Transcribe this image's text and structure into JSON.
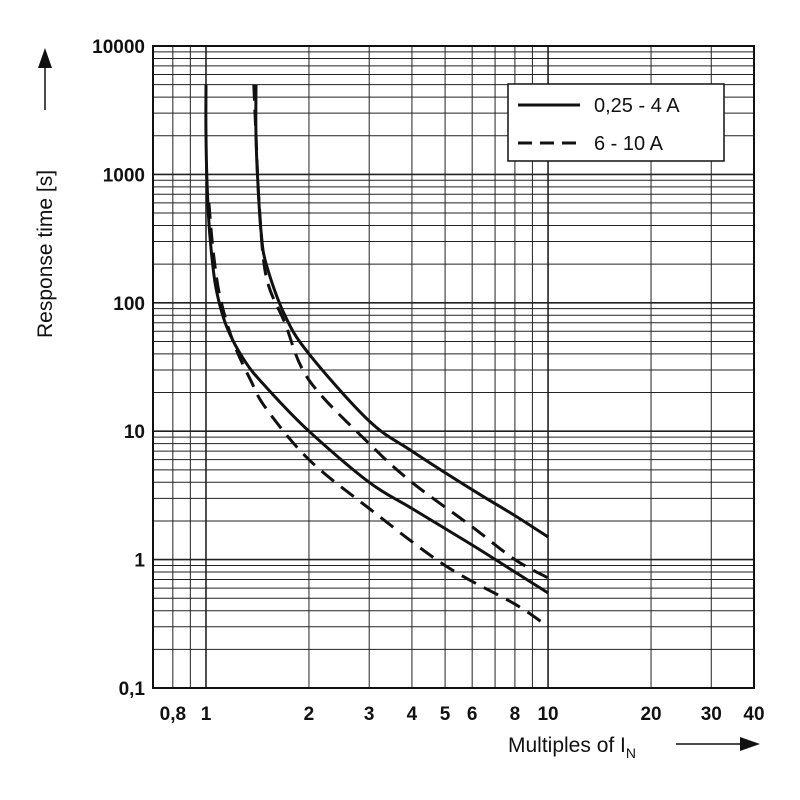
{
  "chart_data": {
    "type": "line",
    "title": "",
    "xlabel": "Multiples of I",
    "xlabel_subscript": "N",
    "ylabel": "Response time [s]",
    "x_scale": "log",
    "y_scale": "log",
    "xlim": [
      0.7,
      40
    ],
    "ylim": [
      0.1,
      10000
    ],
    "grid": true,
    "x_ticks": [
      {
        "value": 0.8,
        "label": "0,8"
      },
      {
        "value": 1,
        "label": "1"
      },
      {
        "value": 2,
        "label": "2"
      },
      {
        "value": 3,
        "label": "3"
      },
      {
        "value": 4,
        "label": "4"
      },
      {
        "value": 5,
        "label": "5"
      },
      {
        "value": 6,
        "label": "6"
      },
      {
        "value": 8,
        "label": "8"
      },
      {
        "value": 10,
        "label": "10"
      },
      {
        "value": 20,
        "label": "20"
      },
      {
        "value": 30,
        "label": "30"
      },
      {
        "value": 40,
        "label": "40"
      }
    ],
    "y_ticks": [
      {
        "value": 0.1,
        "label": "0,1"
      },
      {
        "value": 1,
        "label": "1"
      },
      {
        "value": 10,
        "label": "10"
      },
      {
        "value": 100,
        "label": "100"
      },
      {
        "value": 1000,
        "label": "1000"
      },
      {
        "value": 10000,
        "label": "10000"
      }
    ],
    "legend_position": "top-right",
    "legend": [
      {
        "label": "0,25 - 4 A",
        "style": "solid"
      },
      {
        "label": "6 - 10 A",
        "style": "dashed"
      }
    ],
    "series": [
      {
        "group": "0,25 - 4 A",
        "style": "solid",
        "points": [
          [
            1.0,
            5000
          ],
          [
            1.0,
            2000
          ],
          [
            1.01,
            700
          ],
          [
            1.03,
            300
          ],
          [
            1.07,
            130
          ],
          [
            1.15,
            65
          ],
          [
            1.3,
            35
          ],
          [
            1.5,
            22
          ],
          [
            2.0,
            10
          ],
          [
            3.0,
            4
          ],
          [
            4.0,
            2.5
          ],
          [
            6.0,
            1.3
          ],
          [
            8.0,
            0.8
          ],
          [
            10.0,
            0.55
          ]
        ]
      },
      {
        "group": "0,25 - 4 A",
        "style": "solid",
        "points": [
          [
            1.4,
            5000
          ],
          [
            1.4,
            2000
          ],
          [
            1.42,
            800
          ],
          [
            1.45,
            350
          ],
          [
            1.5,
            200
          ],
          [
            1.7,
            80
          ],
          [
            2.0,
            40
          ],
          [
            3.0,
            12
          ],
          [
            4.0,
            7
          ],
          [
            6.0,
            3.5
          ],
          [
            8.0,
            2.2
          ],
          [
            10.0,
            1.5
          ]
        ]
      },
      {
        "group": "6 - 10 A",
        "style": "dashed",
        "points": [
          [
            1.02,
            600
          ],
          [
            1.05,
            250
          ],
          [
            1.1,
            110
          ],
          [
            1.2,
            50
          ],
          [
            1.35,
            25
          ],
          [
            1.5,
            15
          ],
          [
            2.0,
            6
          ],
          [
            3.0,
            2.5
          ],
          [
            5.0,
            0.9
          ],
          [
            8.0,
            0.45
          ],
          [
            10.0,
            0.3
          ]
        ]
      },
      {
        "group": "6 - 10 A",
        "style": "dashed",
        "points": [
          [
            1.38,
            5000
          ],
          [
            1.4,
            2000
          ],
          [
            1.43,
            600
          ],
          [
            1.5,
            160
          ],
          [
            1.7,
            70
          ],
          [
            2.0,
            25
          ],
          [
            3.0,
            8
          ],
          [
            4.0,
            4
          ],
          [
            6.0,
            1.8
          ],
          [
            8.0,
            1.0
          ],
          [
            10.0,
            0.72
          ]
        ]
      }
    ]
  },
  "colors": {
    "line": "#111111",
    "grid": "#222222",
    "background": "#ffffff"
  }
}
